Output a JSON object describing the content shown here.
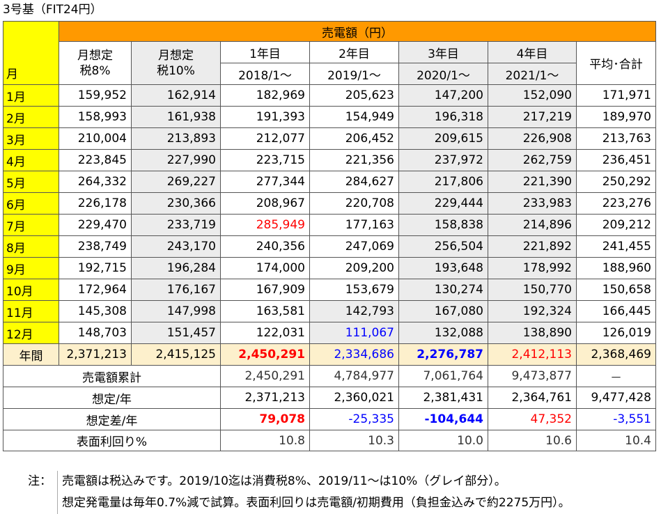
{
  "title": "3号基（FIT24円）",
  "header": {
    "month_col": "月",
    "sales": "売電額（円）",
    "est8": [
      "月想定",
      "税8%"
    ],
    "est10": [
      "月想定",
      "税10%"
    ],
    "years": [
      {
        "label": "1年目",
        "start": "2018/1～"
      },
      {
        "label": "2年目",
        "start": "2019/1～"
      },
      {
        "label": "3年目",
        "start": "2020/1～"
      },
      {
        "label": "4年目",
        "start": "2021/1～"
      }
    ],
    "avg": "平均･合計"
  },
  "rows": [
    {
      "month": "1月",
      "v": [
        "159,952",
        "162,914",
        "182,969",
        "205,623",
        "147,200",
        "152,090",
        "171,971"
      ]
    },
    {
      "month": "2月",
      "v": [
        "158,993",
        "161,938",
        "191,393",
        "154,949",
        "196,318",
        "217,219",
        "189,970"
      ]
    },
    {
      "month": "3月",
      "v": [
        "210,004",
        "213,893",
        "212,077",
        "206,452",
        "209,615",
        "226,908",
        "213,763"
      ]
    },
    {
      "month": "4月",
      "v": [
        "223,845",
        "227,990",
        "223,715",
        "221,356",
        "237,972",
        "262,759",
        "236,451"
      ]
    },
    {
      "month": "5月",
      "v": [
        "264,332",
        "269,227",
        "277,344",
        "284,627",
        "217,806",
        "221,390",
        "250,292"
      ]
    },
    {
      "month": "6月",
      "v": [
        "226,178",
        "230,366",
        "208,967",
        "220,708",
        "229,444",
        "233,983",
        "223,276"
      ]
    },
    {
      "month": "7月",
      "v": [
        "229,470",
        "233,719",
        "285,949",
        "177,163",
        "158,838",
        "214,896",
        "209,212"
      ]
    },
    {
      "month": "8月",
      "v": [
        "238,749",
        "243,170",
        "240,356",
        "247,069",
        "256,504",
        "221,892",
        "241,455"
      ]
    },
    {
      "month": "9月",
      "v": [
        "192,715",
        "196,284",
        "174,000",
        "209,200",
        "193,648",
        "178,992",
        "188,960"
      ]
    },
    {
      "month": "10月",
      "v": [
        "172,964",
        "176,167",
        "167,909",
        "153,679",
        "130,274",
        "150,770",
        "150,658"
      ]
    },
    {
      "month": "11月",
      "v": [
        "145,308",
        "147,998",
        "163,581",
        "142,793",
        "167,080",
        "192,324",
        "166,445"
      ]
    },
    {
      "month": "12月",
      "v": [
        "148,703",
        "151,457",
        "122,031",
        "111,067",
        "132,088",
        "138,890",
        "126,019"
      ]
    }
  ],
  "annual": {
    "label": "年間",
    "v": [
      "2,371,213",
      "2,415,125",
      "2,450,291",
      "2,334,686",
      "2,276,787",
      "2,412,113",
      "2,368,469"
    ]
  },
  "cumulative": {
    "label": "売電額累計",
    "v": [
      "2,450,291",
      "4,784,977",
      "7,061,764",
      "9,473,877",
      "－"
    ]
  },
  "estimate": {
    "label": "想定/年",
    "v": [
      "2,371,213",
      "2,360,021",
      "2,381,431",
      "2,364,761",
      "9,477,428"
    ]
  },
  "diff": {
    "label": "想定差/年",
    "v": [
      "79,078",
      "-25,335",
      "-104,644",
      "47,352",
      "-3,551"
    ]
  },
  "yield": {
    "label": "表面利回り%",
    "v": [
      "10.8",
      "10.3",
      "10.0",
      "10.6",
      "10.4"
    ]
  },
  "notes": {
    "label": "注：",
    "lines": [
      "売電額は税込みです。2019/10迄は消費税8%、2019/11～は10%（グレイ部分）。",
      "想定発電量は毎年0.7%減で試算。表面利回りは売電額/初期費用（負担金込みで約2275万円）。"
    ]
  },
  "colors": {
    "header_orange": "#ff9900",
    "month_yellow": "#ffff00",
    "annual_beige": "#fdf0cc",
    "gray": "#ececec",
    "red": "#ff0000",
    "blue": "#0000ff"
  }
}
